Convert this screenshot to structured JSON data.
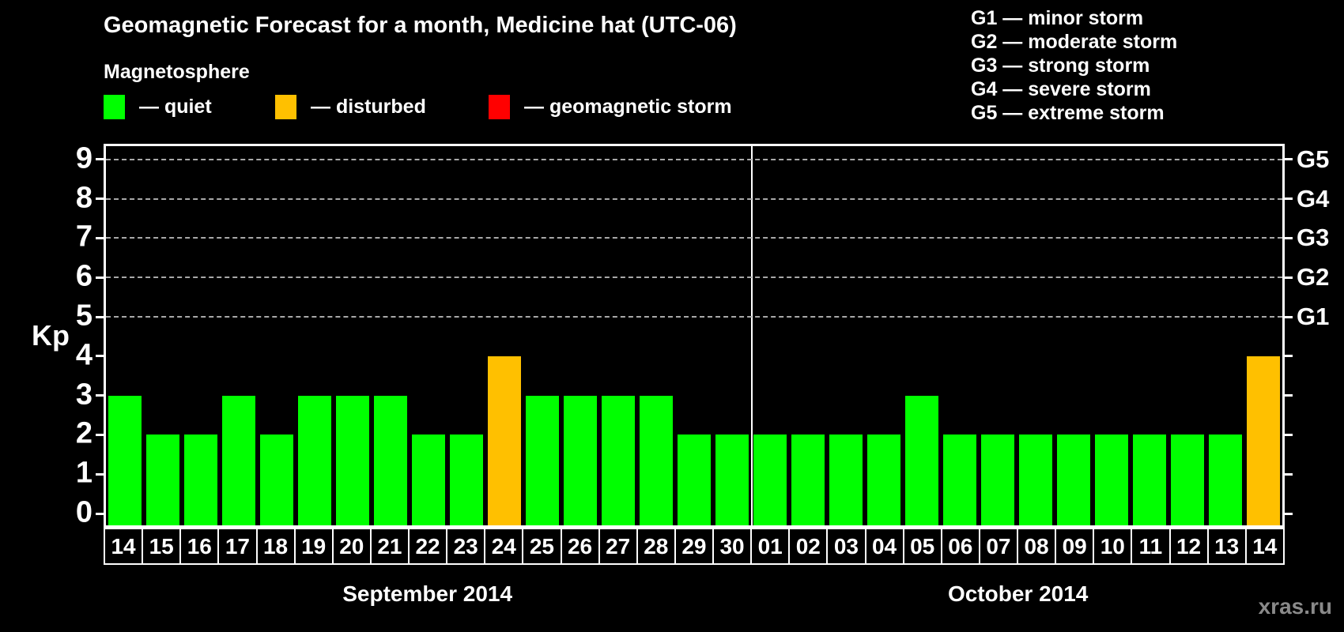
{
  "title": "Geomagnetic Forecast for a month, Medicine hat (UTC-06)",
  "subtitle": "Magnetosphere",
  "legend": {
    "items": [
      {
        "state": "quiet",
        "label": "— quiet"
      },
      {
        "state": "disturbed",
        "label": "— disturbed"
      },
      {
        "state": "storm",
        "label": "— geomagnetic storm"
      }
    ]
  },
  "g_scale_legend": {
    "lines": [
      "G1 — minor storm",
      "G2 — moderate storm",
      "G3 — strong storm",
      "G4 — severe storm",
      "G5 — extreme storm"
    ]
  },
  "watermark": "xras.ru",
  "chart_data": {
    "type": "bar",
    "title": "Geomagnetic Forecast for a month, Medicine hat (UTC-06)",
    "ylabel": "Kp",
    "ylim": [
      0,
      9
    ],
    "y_ticks": [
      0,
      1,
      2,
      3,
      4,
      5,
      6,
      7,
      8,
      9
    ],
    "grid": "horizontal dashed lines at Kp 5-9",
    "legend_position": "top",
    "colors": {
      "quiet": "#00ff00",
      "disturbed": "#ffc000",
      "storm": "#ff0000"
    },
    "right_axis": [
      {
        "label": "G1",
        "kp": 5
      },
      {
        "label": "G2",
        "kp": 6
      },
      {
        "label": "G3",
        "kp": 7
      },
      {
        "label": "G4",
        "kp": 8
      },
      {
        "label": "G5",
        "kp": 9
      }
    ],
    "months": [
      {
        "label": "September 2014",
        "days": [
          {
            "day": "14",
            "kp": 3,
            "state": "quiet"
          },
          {
            "day": "15",
            "kp": 2,
            "state": "quiet"
          },
          {
            "day": "16",
            "kp": 2,
            "state": "quiet"
          },
          {
            "day": "17",
            "kp": 3,
            "state": "quiet"
          },
          {
            "day": "18",
            "kp": 2,
            "state": "quiet"
          },
          {
            "day": "19",
            "kp": 3,
            "state": "quiet"
          },
          {
            "day": "20",
            "kp": 3,
            "state": "quiet"
          },
          {
            "day": "21",
            "kp": 3,
            "state": "quiet"
          },
          {
            "day": "22",
            "kp": 2,
            "state": "quiet"
          },
          {
            "day": "23",
            "kp": 2,
            "state": "quiet"
          },
          {
            "day": "24",
            "kp": 4,
            "state": "disturbed"
          },
          {
            "day": "25",
            "kp": 3,
            "state": "quiet"
          },
          {
            "day": "26",
            "kp": 3,
            "state": "quiet"
          },
          {
            "day": "27",
            "kp": 3,
            "state": "quiet"
          },
          {
            "day": "28",
            "kp": 3,
            "state": "quiet"
          },
          {
            "day": "29",
            "kp": 2,
            "state": "quiet"
          },
          {
            "day": "30",
            "kp": 2,
            "state": "quiet"
          }
        ]
      },
      {
        "label": "October 2014",
        "days": [
          {
            "day": "01",
            "kp": 2,
            "state": "quiet"
          },
          {
            "day": "02",
            "kp": 2,
            "state": "quiet"
          },
          {
            "day": "03",
            "kp": 2,
            "state": "quiet"
          },
          {
            "day": "04",
            "kp": 2,
            "state": "quiet"
          },
          {
            "day": "05",
            "kp": 3,
            "state": "quiet"
          },
          {
            "day": "06",
            "kp": 2,
            "state": "quiet"
          },
          {
            "day": "07",
            "kp": 2,
            "state": "quiet"
          },
          {
            "day": "08",
            "kp": 2,
            "state": "quiet"
          },
          {
            "day": "09",
            "kp": 2,
            "state": "quiet"
          },
          {
            "day": "10",
            "kp": 2,
            "state": "quiet"
          },
          {
            "day": "11",
            "kp": 2,
            "state": "quiet"
          },
          {
            "day": "12",
            "kp": 2,
            "state": "quiet"
          },
          {
            "day": "13",
            "kp": 2,
            "state": "quiet"
          },
          {
            "day": "14",
            "kp": 4,
            "state": "disturbed"
          }
        ]
      }
    ]
  }
}
